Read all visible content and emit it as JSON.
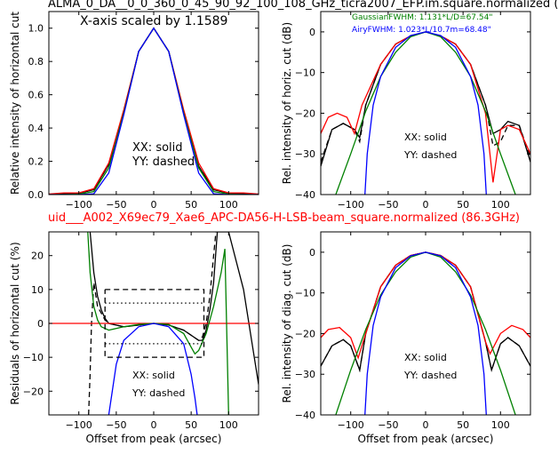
{
  "title_top": "ALMA_0_DA__0_0_360_0_45_90_92_100_108_GHz_ticra2007_EFP.im.square.normalized (",
  "title_mid": "uid___A002_X69ec79_Xae6_APC-DA56-H-LSB-beam_square.normalized (86.3GHz)",
  "colors": {
    "xx_solid": "#000000",
    "yy_dashed": "#000000",
    "model_red": "#ff0000",
    "gaussian": "#008000",
    "airy": "#0000ff",
    "title_mid": "#ff0000"
  },
  "chart_data": [
    {
      "id": "horizontal-cut",
      "type": "line",
      "xlabel": "",
      "ylabel": "Relative intensity of horizontal cut",
      "xlim": [
        -140,
        140
      ],
      "ylim": [
        0,
        1.1
      ],
      "xticks": [
        "−100",
        "−50",
        "0",
        "50",
        "100"
      ],
      "xtick_values": [
        -100,
        -50,
        0,
        50,
        100
      ],
      "yticks": [
        "0.0",
        "0.2",
        "0.4",
        "0.6",
        "0.8",
        "1.0"
      ],
      "ytick_values": [
        0,
        0.2,
        0.4,
        0.6,
        0.8,
        1.0
      ],
      "annotations": [
        "X-axis scaled by 1.1589",
        "XX: solid",
        "YY: dashed"
      ],
      "series": [
        {
          "style": "solid",
          "color": "#000000",
          "x": [
            -140,
            -120,
            -100,
            -80,
            -60,
            -40,
            -20,
            0,
            20,
            40,
            60,
            80,
            100,
            120,
            140
          ],
          "y": [
            0.0,
            0.005,
            0.008,
            0.03,
            0.18,
            0.5,
            0.86,
            1.0,
            0.86,
            0.5,
            0.17,
            0.03,
            0.008,
            0.005,
            0.0
          ]
        },
        {
          "style": "dashed",
          "color": "#000000",
          "x": [
            -140,
            -120,
            -100,
            -80,
            -60,
            -40,
            -20,
            0,
            20,
            40,
            60,
            80,
            100,
            120,
            140
          ],
          "y": [
            0.0,
            0.005,
            0.008,
            0.03,
            0.18,
            0.5,
            0.86,
            1.0,
            0.86,
            0.5,
            0.17,
            0.03,
            0.008,
            0.005,
            0.0
          ]
        },
        {
          "style": "solid",
          "color": "#ff0000",
          "x": [
            -140,
            -120,
            -100,
            -80,
            -60,
            -40,
            -20,
            0,
            20,
            40,
            60,
            80,
            100,
            120,
            140
          ],
          "y": [
            0.003,
            0.01,
            0.01,
            0.035,
            0.19,
            0.51,
            0.86,
            1.0,
            0.86,
            0.51,
            0.19,
            0.035,
            0.01,
            0.01,
            0.003
          ]
        },
        {
          "style": "solid",
          "color": "#008000",
          "x": [
            -140,
            -120,
            -100,
            -80,
            -60,
            -40,
            -20,
            0,
            20,
            40,
            60,
            80,
            100,
            120,
            140
          ],
          "y": [
            0.0,
            0.0,
            0.003,
            0.018,
            0.16,
            0.49,
            0.86,
            1.0,
            0.86,
            0.49,
            0.16,
            0.018,
            0.003,
            0.0,
            0.0
          ]
        },
        {
          "style": "solid",
          "color": "#0000ff",
          "x": [
            -140,
            -120,
            -100,
            -80,
            -60,
            -40,
            -20,
            0,
            20,
            40,
            60,
            80,
            100,
            120,
            140
          ],
          "y": [
            0.0,
            0.0,
            0.0,
            0.005,
            0.13,
            0.48,
            0.86,
            1.0,
            0.86,
            0.48,
            0.13,
            0.005,
            0.0,
            0.0,
            0.0
          ]
        }
      ]
    },
    {
      "id": "horizontal-cut-db",
      "type": "line",
      "xlabel": "",
      "ylabel": "Rel. intensity of horiz. cut (dB)",
      "xlim": [
        -140,
        140
      ],
      "ylim": [
        -40,
        5
      ],
      "xticks": [
        "−100",
        "−50",
        "0",
        "50",
        "100"
      ],
      "xtick_values": [
        -100,
        -50,
        0,
        50,
        100
      ],
      "yticks": [
        "−40",
        "−30",
        "−20",
        "−10",
        "0"
      ],
      "ytick_values": [
        -40,
        -30,
        -20,
        -10,
        0
      ],
      "annotations": [
        "GaussianFWHM: 1.131*L/D=67.54\"",
        "AiryFWHM: 1.023*L/10.7m=68.48\"",
        "XX: solid",
        "YY: dashed"
      ],
      "series": [
        {
          "style": "solid",
          "color": "#000000",
          "x": [
            -140,
            -125,
            -110,
            -95,
            -88,
            -80,
            -60,
            -40,
            -20,
            0,
            20,
            40,
            60,
            80,
            90,
            100,
            110,
            125,
            140
          ],
          "y": [
            -33,
            -24,
            -22.5,
            -24,
            -26,
            -18,
            -8,
            -3,
            -1,
            0,
            -1,
            -3,
            -8,
            -18,
            -25,
            -24,
            -22,
            -23,
            -32
          ]
        },
        {
          "style": "dashed",
          "color": "#000000",
          "x": [
            -140,
            -125,
            -110,
            -95,
            -88,
            -80,
            -60,
            -40,
            -20,
            0,
            20,
            40,
            60,
            80,
            90,
            100,
            110,
            125,
            140
          ],
          "y": [
            -32,
            -24,
            -22.5,
            -24,
            -27,
            -18,
            -8,
            -3,
            -1,
            0,
            -1,
            -3,
            -8,
            -18,
            -28,
            -27,
            -23,
            -23,
            -31
          ]
        },
        {
          "style": "solid",
          "color": "#ff0000",
          "x": [
            -140,
            -130,
            -118,
            -105,
            -95,
            -85,
            -60,
            -40,
            -20,
            0,
            20,
            40,
            60,
            80,
            90,
            100,
            110,
            125,
            140
          ],
          "y": [
            -25,
            -21,
            -20,
            -21,
            -25,
            -18,
            -8,
            -3,
            -1,
            0,
            -1,
            -3,
            -8,
            -20,
            -37,
            -24,
            -23,
            -24,
            -30
          ]
        },
        {
          "style": "solid",
          "color": "#008000",
          "x": [
            -140,
            -120,
            -100,
            -80,
            -60,
            -40,
            -20,
            0,
            20,
            40,
            60,
            80,
            100,
            120,
            140
          ],
          "y": [
            -47,
            -40,
            -30,
            -19.5,
            -11,
            -5,
            -1.2,
            0,
            -1.2,
            -5,
            -11,
            -19.5,
            -30,
            -40,
            -47
          ]
        },
        {
          "style": "solid",
          "color": "#0000ff",
          "x": [
            -81,
            -78,
            -70,
            -60,
            -40,
            -20,
            0,
            20,
            40,
            60,
            70,
            78,
            81
          ],
          "y": [
            -40,
            -30,
            -18,
            -11,
            -3.8,
            -0.9,
            0,
            -0.9,
            -3.8,
            -11,
            -18,
            -30,
            -40
          ]
        }
      ]
    },
    {
      "id": "horizontal-residuals",
      "type": "line",
      "xlabel": "Offset from peak (arcsec)",
      "ylabel": "Residuals of horizontal cut (%)",
      "xlim": [
        -140,
        140
      ],
      "ylim": [
        -27,
        27
      ],
      "xticks": [
        "−100",
        "−50",
        "0",
        "50",
        "100"
      ],
      "xtick_values": [
        -100,
        -50,
        0,
        50,
        100
      ],
      "yticks": [
        "−20",
        "−10",
        "0",
        "10",
        "20"
      ],
      "ytick_values": [
        -20,
        -10,
        0,
        10,
        20
      ],
      "annotations": [
        "XX: solid",
        "YY: dashed"
      ],
      "series": [
        {
          "style": "solid",
          "color": "#000000",
          "x": [
            -85,
            -80,
            -75,
            -70,
            -65,
            -60,
            -40,
            -20,
            0,
            20,
            40,
            60,
            65,
            70,
            75,
            80,
            85,
            100,
            120,
            140
          ],
          "y": [
            27,
            15,
            8,
            4,
            1.5,
            0,
            -1,
            -0.5,
            0,
            -0.5,
            -2,
            -5,
            -5,
            -2,
            4,
            12,
            27,
            27,
            10,
            -18
          ]
        },
        {
          "style": "dashed",
          "color": "#000000",
          "x": [
            -87,
            -85,
            -83,
            -80,
            -75,
            -65,
            -60,
            -40,
            -20,
            0,
            20,
            40,
            60,
            65,
            70,
            75,
            80,
            83
          ],
          "y": [
            -27,
            -15,
            0,
            12,
            5,
            1,
            0,
            -1,
            -0.5,
            0,
            -0.5,
            -2,
            -5,
            -4,
            0,
            8,
            20,
            27
          ]
        },
        {
          "style": "solid",
          "color": "#ff0000",
          "x": [
            -140,
            140
          ],
          "y": [
            0,
            0
          ]
        },
        {
          "style": "solid",
          "color": "#008000",
          "x": [
            -88,
            -85,
            -80,
            -75,
            -70,
            -60,
            -40,
            -20,
            0,
            20,
            40,
            50,
            55,
            60,
            70,
            80,
            90,
            95,
            100
          ],
          "y": [
            27,
            15,
            5,
            1,
            -1,
            -2,
            -1,
            -0.3,
            0,
            -0.3,
            -3,
            -7,
            -9,
            -8,
            -3,
            5,
            15,
            22,
            -27
          ]
        },
        {
          "style": "solid",
          "color": "#0000ff",
          "x": [
            -60,
            -50,
            -40,
            -20,
            0,
            20,
            40,
            50,
            55,
            58
          ],
          "y": [
            -27,
            -12,
            -5,
            -1,
            0,
            -1,
            -6,
            -15,
            -22,
            -27
          ]
        },
        {
          "style": "dotted",
          "color": "#000000",
          "x": [
            -65,
            65
          ],
          "y": [
            6,
            6
          ]
        },
        {
          "style": "dotted",
          "color": "#000000",
          "x": [
            -65,
            65
          ],
          "y": [
            -6,
            -6
          ]
        },
        {
          "style": "dashed",
          "color": "#000000",
          "x": [
            -65,
            67,
            67,
            -65,
            -65
          ],
          "y": [
            10,
            10,
            -10,
            -10,
            10
          ]
        }
      ]
    },
    {
      "id": "diagonal-cut-db",
      "type": "line",
      "xlabel": "Offset from peak (arcsec)",
      "ylabel": "Rel. intensity of diag. cut (dB)",
      "xlim": [
        -140,
        140
      ],
      "ylim": [
        -40,
        5
      ],
      "xticks": [
        "−100",
        "−50",
        "0",
        "50",
        "100"
      ],
      "xtick_values": [
        -100,
        -50,
        0,
        50,
        100
      ],
      "yticks": [
        "−40",
        "−30",
        "−20",
        "−10",
        "0"
      ],
      "ytick_values": [
        -40,
        -30,
        -20,
        -10,
        0
      ],
      "annotations": [
        "XX: solid",
        "YY: dashed"
      ],
      "series": [
        {
          "style": "solid",
          "color": "#000000",
          "x": [
            -140,
            -125,
            -110,
            -100,
            -88,
            -80,
            -60,
            -40,
            -20,
            0,
            20,
            40,
            60,
            80,
            88,
            100,
            110,
            125,
            140
          ],
          "y": [
            -28,
            -23,
            -21.5,
            -23,
            -29,
            -20,
            -8.5,
            -3.2,
            -0.8,
            0,
            -0.8,
            -3.2,
            -8.5,
            -22,
            -29,
            -22.5,
            -21,
            -23,
            -28
          ]
        },
        {
          "style": "dashed",
          "color": "#000000",
          "x": [
            -140,
            -125,
            -110,
            -100,
            -88,
            -80,
            -60,
            -40,
            -20,
            0,
            20,
            40,
            60,
            80,
            88,
            100,
            110,
            125,
            140
          ],
          "y": [
            -28,
            -23,
            -21.5,
            -23,
            -29,
            -20,
            -8.5,
            -3.2,
            -0.8,
            0,
            -0.8,
            -3.2,
            -8.5,
            -22,
            -29,
            -22.5,
            -21,
            -23,
            -28
          ]
        },
        {
          "style": "solid",
          "color": "#ff0000",
          "x": [
            -140,
            -130,
            -115,
            -100,
            -90,
            -80,
            -60,
            -40,
            -20,
            0,
            20,
            40,
            60,
            80,
            86,
            100,
            115,
            130,
            140
          ],
          "y": [
            -21,
            -19,
            -18.5,
            -21,
            -26,
            -20,
            -8.5,
            -3.2,
            -0.8,
            0,
            -0.8,
            -3.2,
            -8.5,
            -22,
            -25,
            -20,
            -18,
            -19,
            -21
          ]
        },
        {
          "style": "solid",
          "color": "#008000",
          "x": [
            -140,
            -120,
            -100,
            -80,
            -60,
            -40,
            -20,
            0,
            20,
            40,
            60,
            80,
            100,
            120,
            140
          ],
          "y": [
            -47,
            -40,
            -29,
            -19,
            -10.5,
            -4.8,
            -1.2,
            0,
            -1.2,
            -4.8,
            -10.5,
            -19,
            -29,
            -40,
            -47
          ]
        },
        {
          "style": "solid",
          "color": "#0000ff",
          "x": [
            -81,
            -78,
            -70,
            -60,
            -40,
            -20,
            0,
            20,
            40,
            60,
            70,
            78,
            81
          ],
          "y": [
            -40,
            -30,
            -18,
            -11,
            -3.8,
            -0.9,
            0,
            -0.9,
            -3.8,
            -11,
            -18,
            -30,
            -40
          ]
        }
      ]
    }
  ]
}
